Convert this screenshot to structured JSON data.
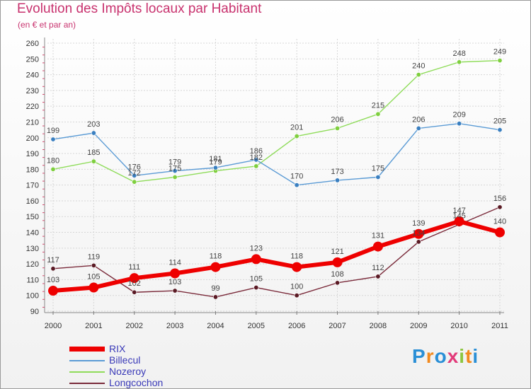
{
  "title": "Evolution des Impôts locaux par Habitant",
  "subtitle": "(en € et par an)",
  "logo": "Proxiti",
  "chart_data": {
    "type": "line",
    "x": [
      "2000",
      "2001",
      "2002",
      "2003",
      "2004",
      "2005",
      "2006",
      "2007",
      "2008",
      "2009",
      "2010",
      "2011"
    ],
    "ylim": [
      90,
      260
    ],
    "yticks": [
      90,
      100,
      110,
      120,
      130,
      140,
      150,
      160,
      170,
      180,
      190,
      200,
      210,
      220,
      230,
      240,
      250,
      260
    ],
    "grid": true,
    "legend_position": "bottom-left",
    "series": [
      {
        "name": "Nozeroy",
        "color": "#8fdc5a",
        "point_color": "#7fcf3f",
        "values": [
          180,
          185,
          172,
          175,
          179,
          182,
          201,
          206,
          215,
          240,
          248,
          249
        ]
      },
      {
        "name": "Billecul",
        "color": "#5b9bd5",
        "point_color": "#3a7fc0",
        "values": [
          199,
          203,
          176,
          179,
          181,
          186,
          170,
          173,
          175,
          206,
          209,
          205
        ]
      },
      {
        "name": "Longcochon",
        "color": "#7a2a3a",
        "point_color": "#5a1a24",
        "values": [
          117,
          119,
          102,
          103,
          99,
          105,
          100,
          108,
          112,
          134,
          145,
          156
        ]
      },
      {
        "name": "RIX",
        "color": "#ee0000",
        "point_color": "#ee0000",
        "values": [
          103,
          105,
          111,
          114,
          118,
          123,
          118,
          121,
          131,
          139,
          147,
          140
        ]
      }
    ]
  }
}
